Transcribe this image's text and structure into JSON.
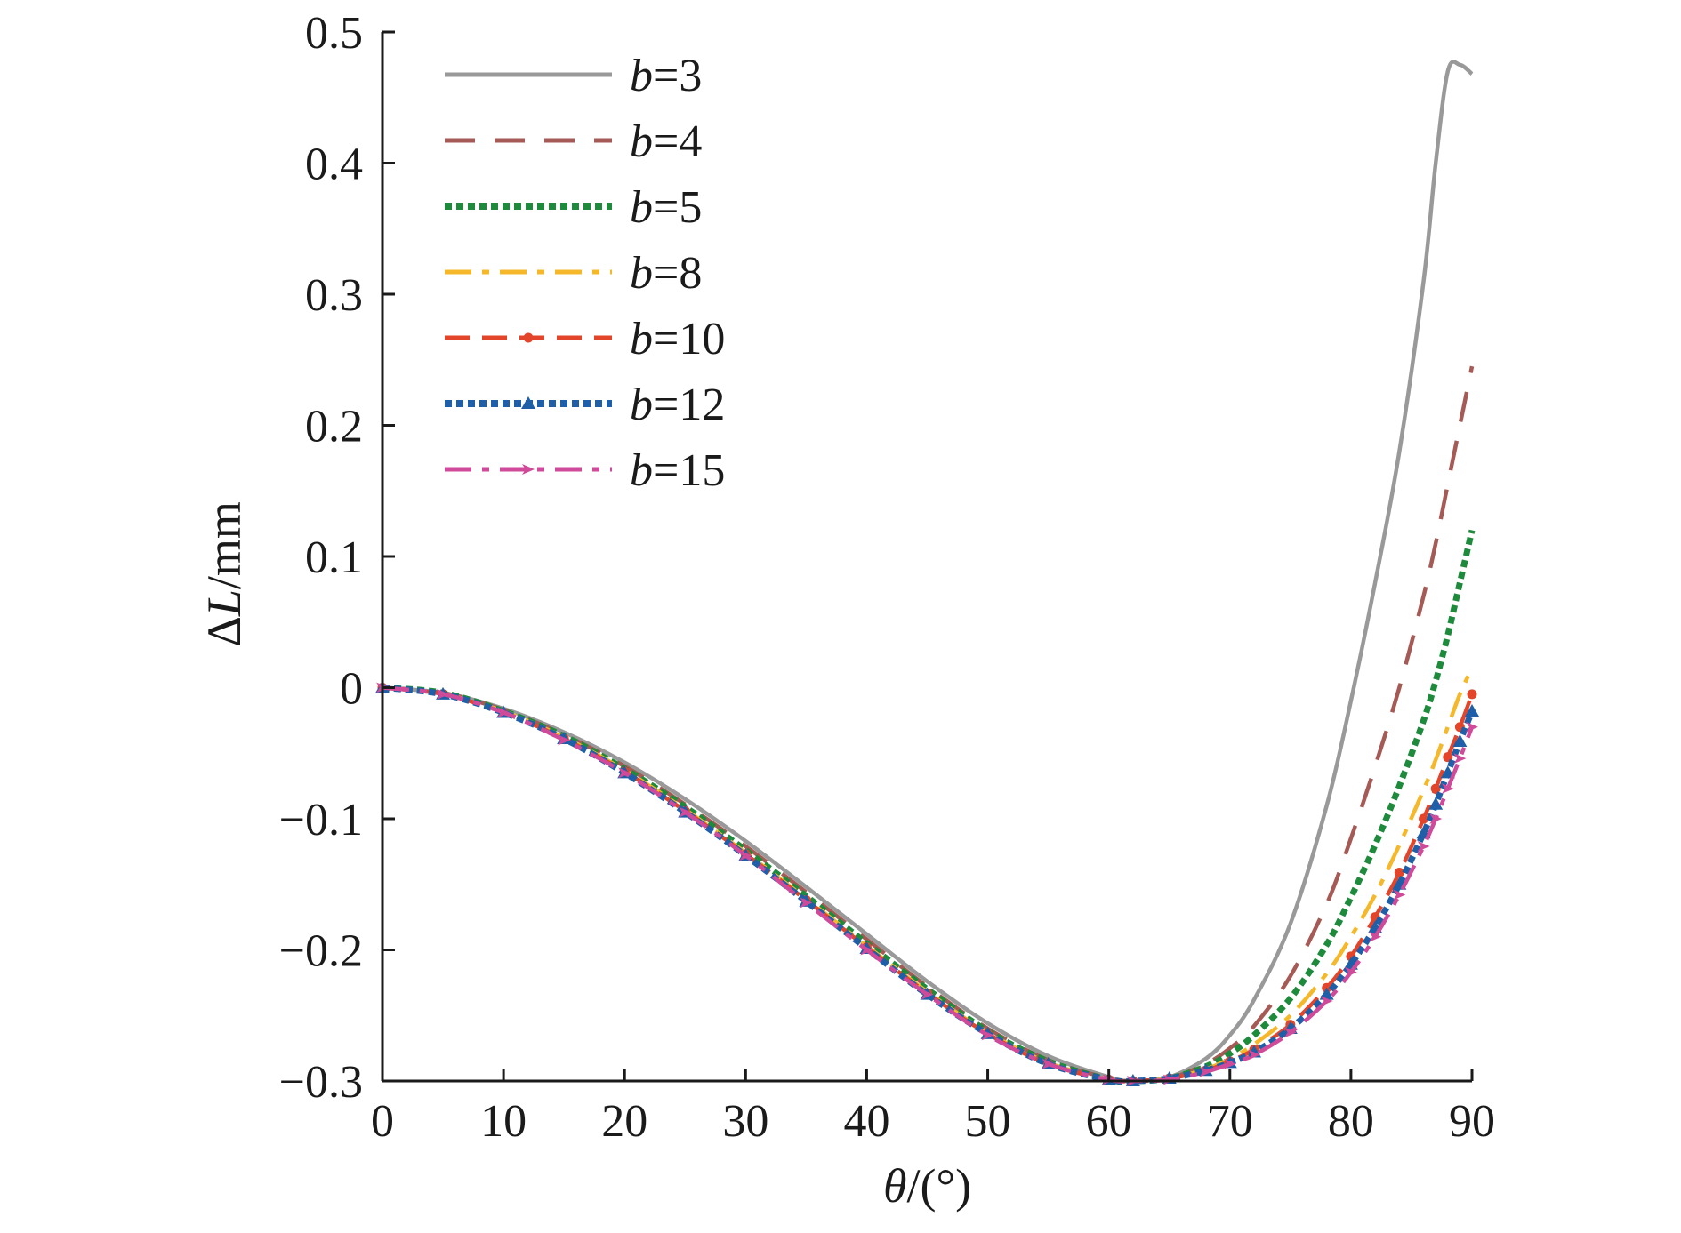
{
  "chart_data": {
    "type": "line",
    "xlabel_var": "θ",
    "xlabel_unit": "/(°)",
    "ylabel_delta": "Δ",
    "ylabel_var": "L",
    "ylabel_unit": "/mm",
    "xlim": [
      0,
      90
    ],
    "ylim": [
      -0.3,
      0.5
    ],
    "x_ticks": [
      0,
      10,
      20,
      30,
      40,
      50,
      60,
      70,
      80,
      90
    ],
    "x_tick_labels": [
      "0",
      "10",
      "20",
      "30",
      "40",
      "50",
      "60",
      "70",
      "80",
      "90"
    ],
    "y_ticks": [
      -0.3,
      -0.2,
      -0.1,
      0,
      0.1,
      0.2,
      0.3,
      0.4,
      0.5
    ],
    "y_tick_labels": [
      "−0.3",
      "−0.2",
      "−0.1",
      "0",
      "0.1",
      "0.2",
      "0.3",
      "0.4",
      "0.5"
    ],
    "grid": false,
    "legend_position": "top-left",
    "x": [
      0,
      5,
      10,
      15,
      20,
      25,
      30,
      35,
      40,
      45,
      50,
      55,
      60,
      62,
      65,
      68,
      70,
      72,
      75,
      78,
      80,
      82,
      84,
      86,
      87,
      88,
      89,
      90
    ],
    "series": [
      {
        "name_var": "b",
        "name_value": "=3",
        "color": "#999999",
        "dash": "",
        "marker": "none",
        "values": [
          0,
          -0.004,
          -0.016,
          -0.034,
          -0.057,
          -0.085,
          -0.117,
          -0.152,
          -0.188,
          -0.224,
          -0.256,
          -0.281,
          -0.297,
          -0.3,
          -0.297,
          -0.283,
          -0.265,
          -0.238,
          -0.18,
          -0.09,
          -0.01,
          0.08,
          0.18,
          0.31,
          0.4,
          0.47,
          0.475,
          0.468
        ]
      },
      {
        "name_var": "b",
        "name_value": "=4",
        "color": "#a55a55",
        "dash": "34 22",
        "marker": "none",
        "values": [
          0,
          -0.004,
          -0.017,
          -0.036,
          -0.06,
          -0.089,
          -0.121,
          -0.156,
          -0.192,
          -0.228,
          -0.26,
          -0.284,
          -0.298,
          -0.3,
          -0.298,
          -0.287,
          -0.275,
          -0.258,
          -0.22,
          -0.165,
          -0.115,
          -0.06,
          0.0,
          0.07,
          0.11,
          0.155,
          0.2,
          0.245
        ]
      },
      {
        "name_var": "b",
        "name_value": "=5",
        "color": "#1e8a3c",
        "dash": "8 5",
        "marker": "none",
        "values": [
          0,
          -0.004,
          -0.018,
          -0.037,
          -0.062,
          -0.091,
          -0.124,
          -0.159,
          -0.195,
          -0.23,
          -0.262,
          -0.285,
          -0.299,
          -0.3,
          -0.298,
          -0.289,
          -0.279,
          -0.265,
          -0.237,
          -0.196,
          -0.16,
          -0.12,
          -0.075,
          -0.025,
          0.005,
          0.04,
          0.08,
          0.12
        ]
      },
      {
        "name_var": "b",
        "name_value": "=8",
        "color": "#f5b82a",
        "dash": "30 12 8 12",
        "marker": "none",
        "values": [
          0,
          -0.005,
          -0.018,
          -0.038,
          -0.063,
          -0.093,
          -0.126,
          -0.161,
          -0.197,
          -0.232,
          -0.263,
          -0.286,
          -0.299,
          -0.3,
          -0.298,
          -0.291,
          -0.283,
          -0.272,
          -0.25,
          -0.218,
          -0.19,
          -0.158,
          -0.12,
          -0.078,
          -0.055,
          -0.03,
          -0.005,
          0.015
        ]
      },
      {
        "name_var": "b",
        "name_value": "=10",
        "color": "#e2452a",
        "dash": "28 14",
        "marker": "dot",
        "values": [
          0,
          -0.005,
          -0.019,
          -0.039,
          -0.064,
          -0.094,
          -0.127,
          -0.162,
          -0.198,
          -0.233,
          -0.264,
          -0.287,
          -0.299,
          -0.3,
          -0.298,
          -0.292,
          -0.285,
          -0.276,
          -0.257,
          -0.229,
          -0.205,
          -0.175,
          -0.141,
          -0.1,
          -0.077,
          -0.053,
          -0.03,
          -0.005
        ]
      },
      {
        "name_var": "b",
        "name_value": "=12",
        "color": "#1f5fa8",
        "dash": "8 5",
        "marker": "triangle",
        "values": [
          0,
          -0.005,
          -0.019,
          -0.039,
          -0.065,
          -0.095,
          -0.128,
          -0.163,
          -0.199,
          -0.234,
          -0.264,
          -0.287,
          -0.299,
          -0.3,
          -0.298,
          -0.292,
          -0.286,
          -0.278,
          -0.26,
          -0.234,
          -0.211,
          -0.183,
          -0.15,
          -0.111,
          -0.089,
          -0.065,
          -0.041,
          -0.018
        ]
      },
      {
        "name_var": "b",
        "name_value": "=15",
        "color": "#d04a9a",
        "dash": "30 12 8 12",
        "marker": "arrow",
        "values": [
          0,
          -0.005,
          -0.019,
          -0.04,
          -0.065,
          -0.095,
          -0.128,
          -0.164,
          -0.2,
          -0.234,
          -0.265,
          -0.287,
          -0.299,
          -0.3,
          -0.299,
          -0.293,
          -0.287,
          -0.28,
          -0.263,
          -0.239,
          -0.217,
          -0.19,
          -0.158,
          -0.121,
          -0.1,
          -0.077,
          -0.054,
          -0.03
        ]
      }
    ]
  }
}
